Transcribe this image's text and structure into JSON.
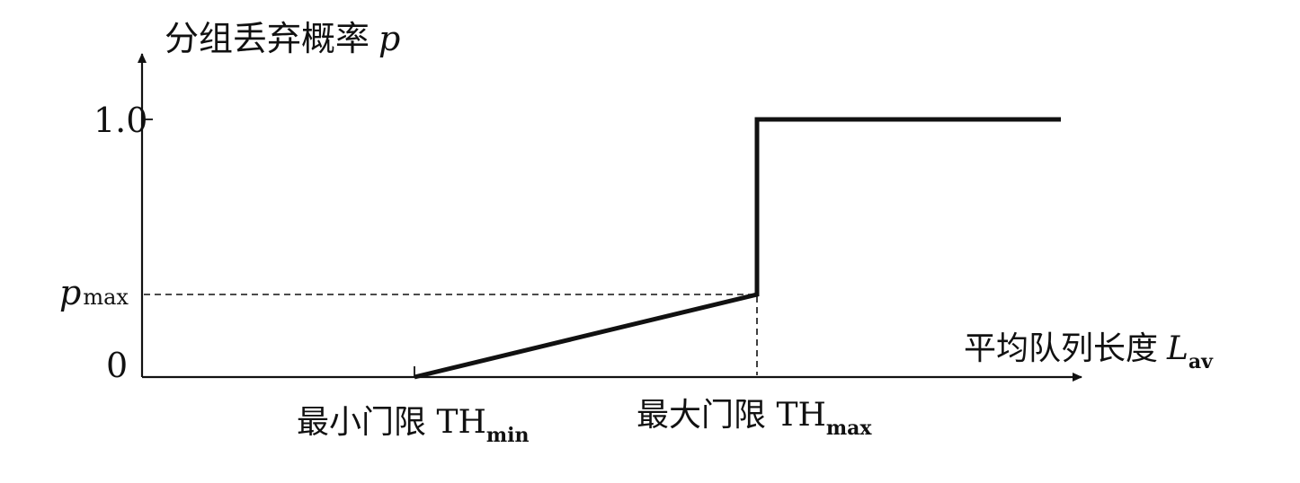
{
  "chart_data": {
    "type": "line",
    "ylabel": "分组丢弃概率",
    "ylabel_var": "p",
    "xlabel": "平均队列长度",
    "xlabel_var": "L",
    "xlabel_sub": "av",
    "y_ticks": {
      "one": "1.0",
      "pmax_var": "p",
      "pmax_sub": "max",
      "zero": "0"
    },
    "x_ticks": {
      "thmin_text": "最小门限 TH",
      "thmin_sub": "min",
      "thmax_text": "最大门限 TH",
      "thmax_sub": "max"
    },
    "curve": [
      {
        "x": "0",
        "y": 0
      },
      {
        "x": "TH_min",
        "y": 0
      },
      {
        "x": "TH_max",
        "y": "p_max"
      },
      {
        "x": "TH_max",
        "y": 1.0
      },
      {
        "x": "end",
        "y": 1.0
      }
    ],
    "grid": false
  }
}
